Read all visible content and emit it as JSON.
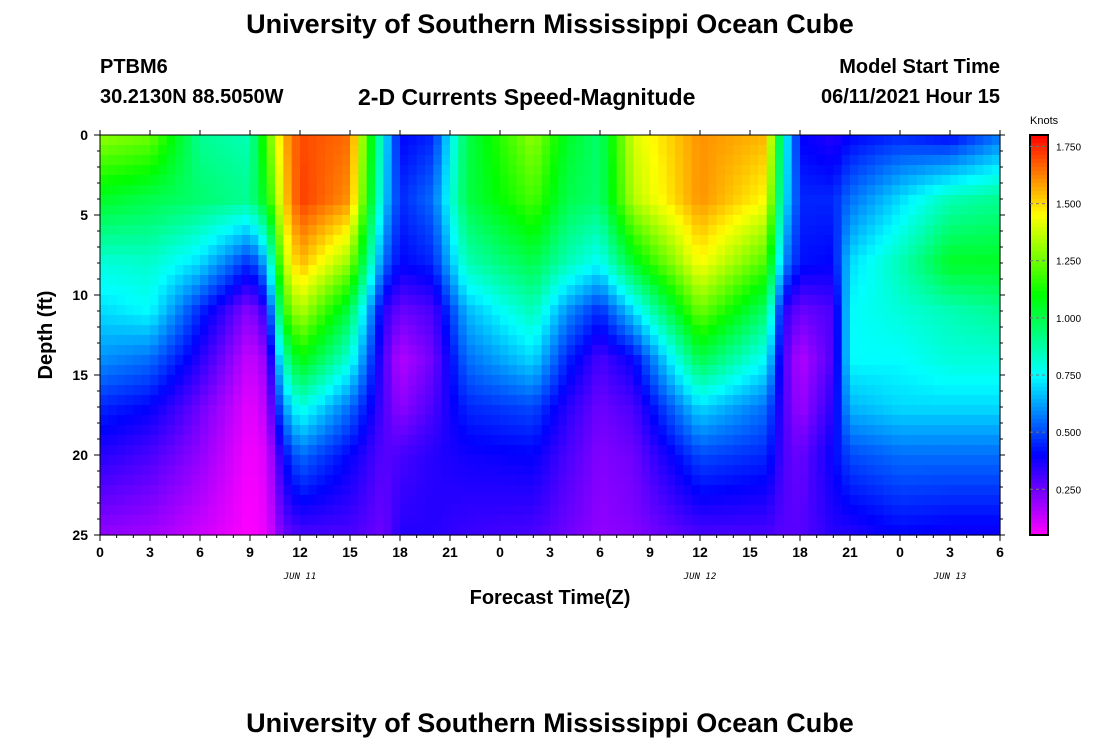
{
  "header": {
    "title": "University of Southern Mississippi Ocean Cube",
    "station": "PTBM6",
    "coords": "30.2130N  88.5050W",
    "subtitle": "2-D Currents Speed-Magnitude",
    "model_start_label": "Model Start Time",
    "model_start_value": "06/11/2021 Hour 15"
  },
  "footer": {
    "title": "University of Southern Mississippi Ocean Cube"
  },
  "chart_data": {
    "type": "heatmap",
    "title": "2-D Currents Speed-Magnitude",
    "xlabel": "Forecast Time(Z)",
    "ylabel": "Depth (ft)",
    "x_range_hours": [
      0,
      54
    ],
    "x_tick_labels": [
      "0",
      "3",
      "6",
      "9",
      "12",
      "15",
      "18",
      "21",
      "0",
      "3",
      "6",
      "9",
      "12",
      "15",
      "18",
      "21",
      "0",
      "3",
      "6"
    ],
    "date_labels": [
      {
        "label": "JUN 11",
        "hour": 12
      },
      {
        "label": "JUN 12",
        "hour": 36
      },
      {
        "label": "JUN 13",
        "hour": 51
      }
    ],
    "y_range_ft": [
      0,
      25
    ],
    "y_ticks": [
      0,
      5,
      10,
      15,
      20,
      25
    ],
    "colorbar": {
      "label": "Knots",
      "range": [
        0.05,
        1.8
      ],
      "ticks": [
        "0.250",
        "0.500",
        "0.750",
        "1.000",
        "1.250",
        "1.500",
        "1.750"
      ],
      "tick_values": [
        0.25,
        0.5,
        0.75,
        1.0,
        1.25,
        1.5,
        1.75
      ]
    },
    "speed_profiles": [
      {
        "hour": 0,
        "depth_ft": [
          0,
          4,
          8,
          11,
          14,
          17,
          20,
          25
        ],
        "knots": [
          1.3,
          1.05,
          0.8,
          0.7,
          0.6,
          0.45,
          0.35,
          0.2
        ]
      },
      {
        "hour": 3,
        "depth_ft": [
          0,
          4,
          8,
          11,
          14,
          17,
          20,
          25
        ],
        "knots": [
          1.25,
          1.0,
          0.82,
          0.75,
          0.55,
          0.4,
          0.3,
          0.18
        ]
      },
      {
        "hour": 6,
        "depth_ft": [
          0,
          4,
          8,
          11,
          14,
          17,
          20,
          25
        ],
        "knots": [
          0.9,
          0.95,
          0.7,
          0.45,
          0.35,
          0.25,
          0.2,
          0.12
        ]
      },
      {
        "hour": 9,
        "depth_ft": [
          0,
          4,
          8,
          11,
          14,
          17,
          20,
          25
        ],
        "knots": [
          0.85,
          0.9,
          0.45,
          0.2,
          0.12,
          0.08,
          0.06,
          0.05
        ]
      },
      {
        "hour": 10,
        "depth_ft": [
          0,
          4,
          8,
          11,
          14,
          17,
          20,
          25
        ],
        "knots": [
          1.2,
          1.1,
          0.65,
          0.35,
          0.2,
          0.15,
          0.1,
          0.08
        ]
      },
      {
        "hour": 11,
        "depth_ft": [
          0,
          4,
          8,
          11,
          14,
          17,
          20,
          25
        ],
        "knots": [
          1.55,
          1.5,
          1.35,
          1.15,
          0.85,
          0.6,
          0.4,
          0.25
        ]
      },
      {
        "hour": 12,
        "depth_ft": [
          0,
          4,
          8,
          11,
          14,
          17,
          20,
          25
        ],
        "knots": [
          1.7,
          1.72,
          1.55,
          1.35,
          1.1,
          0.8,
          0.55,
          0.3
        ]
      },
      {
        "hour": 15,
        "depth_ft": [
          0,
          4,
          8,
          11,
          14,
          17,
          20,
          25
        ],
        "knots": [
          1.65,
          1.6,
          1.3,
          1.0,
          0.8,
          0.55,
          0.4,
          0.3
        ]
      },
      {
        "hour": 17,
        "depth_ft": [
          0,
          4,
          8,
          11,
          14,
          17,
          20,
          25
        ],
        "knots": [
          0.75,
          0.7,
          0.55,
          0.35,
          0.3,
          0.3,
          0.28,
          0.25
        ]
      },
      {
        "hour": 18,
        "depth_ft": [
          0,
          4,
          8,
          11,
          14,
          17,
          20,
          25
        ],
        "knots": [
          0.4,
          0.45,
          0.4,
          0.25,
          0.15,
          0.2,
          0.3,
          0.35
        ]
      },
      {
        "hour": 20,
        "depth_ft": [
          0,
          4,
          8,
          11,
          14,
          17,
          20,
          25
        ],
        "knots": [
          0.45,
          0.55,
          0.45,
          0.3,
          0.25,
          0.3,
          0.35,
          0.35
        ]
      },
      {
        "hour": 22,
        "depth_ft": [
          0,
          4,
          8,
          11,
          14,
          17,
          20,
          25
        ],
        "knots": [
          1.0,
          1.0,
          0.85,
          0.65,
          0.55,
          0.45,
          0.38,
          0.32
        ]
      },
      {
        "hour": 26,
        "depth_ft": [
          0,
          4,
          8,
          11,
          14,
          17,
          20,
          25
        ],
        "knots": [
          1.3,
          1.2,
          1.0,
          0.85,
          0.7,
          0.5,
          0.4,
          0.3
        ]
      },
      {
        "hour": 28,
        "depth_ft": [
          0,
          4,
          8,
          11,
          14,
          17,
          20,
          25
        ],
        "knots": [
          1.05,
          1.0,
          0.85,
          0.6,
          0.45,
          0.35,
          0.3,
          0.25
        ]
      },
      {
        "hour": 30,
        "depth_ft": [
          0,
          4,
          8,
          11,
          14,
          17,
          20,
          25
        ],
        "knots": [
          0.95,
          0.95,
          0.75,
          0.45,
          0.3,
          0.25,
          0.22,
          0.2
        ]
      },
      {
        "hour": 32,
        "depth_ft": [
          0,
          4,
          8,
          11,
          14,
          17,
          20,
          25
        ],
        "knots": [
          1.4,
          1.35,
          1.05,
          0.7,
          0.4,
          0.3,
          0.25,
          0.22
        ]
      },
      {
        "hour": 36,
        "depth_ft": [
          0,
          4,
          8,
          11,
          14,
          17,
          20,
          25
        ],
        "knots": [
          1.6,
          1.6,
          1.45,
          1.25,
          1.0,
          0.7,
          0.5,
          0.3
        ]
      },
      {
        "hour": 40,
        "depth_ft": [
          0,
          4,
          8,
          11,
          14,
          17,
          20,
          25
        ],
        "knots": [
          1.55,
          1.45,
          1.2,
          0.95,
          0.75,
          0.55,
          0.45,
          0.3
        ]
      },
      {
        "hour": 41,
        "depth_ft": [
          0,
          4,
          8,
          11,
          14,
          17,
          20,
          25
        ],
        "knots": [
          0.8,
          0.75,
          0.6,
          0.35,
          0.3,
          0.3,
          0.3,
          0.28
        ]
      },
      {
        "hour": 42,
        "depth_ft": [
          0,
          4,
          8,
          11,
          14,
          17,
          20,
          25
        ],
        "knots": [
          0.4,
          0.45,
          0.42,
          0.25,
          0.15,
          0.18,
          0.25,
          0.28
        ]
      },
      {
        "hour": 44,
        "depth_ft": [
          0,
          4,
          8,
          11,
          14,
          17,
          20,
          25
        ],
        "knots": [
          0.35,
          0.45,
          0.4,
          0.3,
          0.3,
          0.35,
          0.4,
          0.35
        ]
      },
      {
        "hour": 45,
        "depth_ft": [
          0,
          4,
          8,
          11,
          14,
          17,
          20,
          25
        ],
        "knots": [
          0.4,
          0.55,
          0.7,
          0.75,
          0.75,
          0.65,
          0.5,
          0.35
        ]
      },
      {
        "hour": 48,
        "depth_ft": [
          0,
          4,
          8,
          11,
          14,
          17,
          20,
          25
        ],
        "knots": [
          0.45,
          0.7,
          0.85,
          0.8,
          0.75,
          0.7,
          0.55,
          0.4
        ]
      },
      {
        "hour": 51,
        "depth_ft": [
          0,
          4,
          8,
          11,
          14,
          17,
          20,
          25
        ],
        "knots": [
          0.4,
          0.85,
          1.05,
          0.85,
          0.8,
          0.7,
          0.55,
          0.38
        ]
      },
      {
        "hour": 54,
        "depth_ft": [
          0,
          4,
          8,
          11,
          14,
          17,
          20,
          25
        ],
        "knots": [
          0.55,
          0.9,
          1.05,
          0.9,
          0.8,
          0.7,
          0.55,
          0.38
        ]
      }
    ]
  }
}
